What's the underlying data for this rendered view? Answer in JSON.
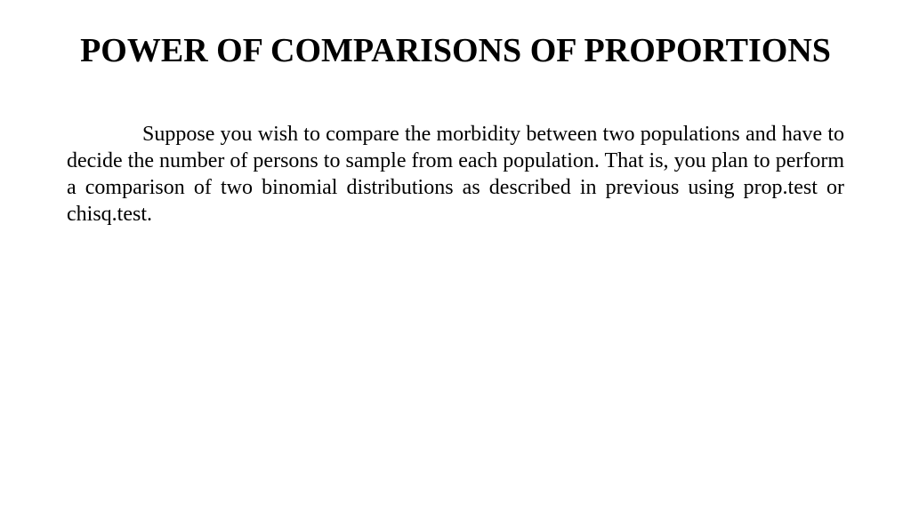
{
  "document": {
    "title": "POWER OF COMPARISONS OF PROPORTIONS",
    "paragraph": "Suppose you wish to compare the morbidity between two populations and have to decide the number of persons to sample from each population. That is, you plan to perform a comparison of two binomial distributions as described in previous using prop.test or chisq.test.",
    "title_fontsize": 38,
    "body_fontsize": 24,
    "text_color": "#000000",
    "background_color": "#ffffff",
    "font_family": "Times New Roman"
  }
}
